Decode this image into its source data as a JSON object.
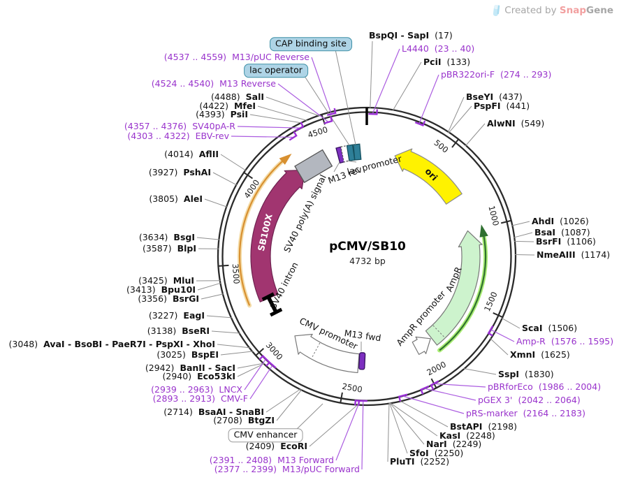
{
  "watermark": {
    "prefix": "Created by ",
    "brand_a": "Snap",
    "brand_b": "Gene"
  },
  "plasmid": {
    "name": "pCMV/SB10",
    "size": "4732 bp"
  },
  "tick_labels": [
    "500",
    "1000",
    "1500",
    "2000",
    "2500",
    "3000",
    "3500",
    "4000",
    "4500"
  ],
  "features": [
    {
      "id": "ori",
      "label": "ori"
    },
    {
      "id": "ampr",
      "label": "AmpR"
    },
    {
      "id": "ampr_promoter",
      "label": "AmpR promoter"
    },
    {
      "id": "cmv_promoter",
      "label": "CMV promoter"
    },
    {
      "id": "m13_fwd",
      "label": "M13 fwd"
    },
    {
      "id": "m13_rev",
      "label": "M13 rev"
    },
    {
      "id": "lac_promoter",
      "label": "lac promoter"
    },
    {
      "id": "sb100x",
      "label": "SB100X"
    },
    {
      "id": "sv40_polya",
      "label": "SV40 poly(A) signal"
    },
    {
      "id": "sv40_intron",
      "label": "SV40 intron"
    }
  ],
  "boxed_labels": [
    {
      "id": "cap",
      "text": "CAP binding site"
    },
    {
      "id": "lacop",
      "text": "lac operator"
    },
    {
      "id": "cmv_enh",
      "text": "CMV enhancer"
    }
  ],
  "enzymes": [
    {
      "id": "SalI",
      "name": "SalI",
      "pos": "(4488)"
    },
    {
      "id": "MfeI",
      "name": "MfeI",
      "pos": "(4422)"
    },
    {
      "id": "PsiI",
      "name": "PsiI",
      "pos": "(4393)"
    },
    {
      "id": "AflII",
      "name": "AflII",
      "pos": "(4014)"
    },
    {
      "id": "PshAI",
      "name": "PshAI",
      "pos": "(3927)"
    },
    {
      "id": "AleI",
      "name": "AleI",
      "pos": "(3805)"
    },
    {
      "id": "BsgI",
      "name": "BsgI",
      "pos": "(3634)"
    },
    {
      "id": "BlpI",
      "name": "BlpI",
      "pos": "(3587)"
    },
    {
      "id": "MluI",
      "name": "MluI",
      "pos": "(3425)"
    },
    {
      "id": "Bpu10I",
      "name": "Bpu10I",
      "pos": "(3413)"
    },
    {
      "id": "BsrGI",
      "name": "BsrGI",
      "pos": "(3356)"
    },
    {
      "id": "EagI",
      "name": "EagI",
      "pos": "(3227)"
    },
    {
      "id": "BseRI",
      "name": "BseRI",
      "pos": "(3138)"
    },
    {
      "id": "AvaGroup",
      "name": "AvaI - BsoBI - PaeR7I - PspXI - XhoI",
      "pos": "(3048)"
    },
    {
      "id": "BspEI",
      "name": "BspEI",
      "pos": "(3025)"
    },
    {
      "id": "BanII",
      "name": "BanII - SacI",
      "pos": "(2942)"
    },
    {
      "id": "Eco53kI",
      "name": "Eco53kI",
      "pos": "(2940)"
    },
    {
      "id": "BsaAI",
      "name": "BsaAI - SnaBI",
      "pos": "(2714)"
    },
    {
      "id": "BtgZI",
      "name": "BtgZI",
      "pos": "(2708)"
    },
    {
      "id": "EcoRI",
      "name": "EcoRI",
      "pos": "(2409)"
    },
    {
      "id": "BspQI",
      "name": "BspQI - SapI",
      "pos": "(17)"
    },
    {
      "id": "PciI",
      "name": "PciI",
      "pos": "(133)"
    },
    {
      "id": "BseYI",
      "name": "BseYI",
      "pos": "(437)"
    },
    {
      "id": "PspFI",
      "name": "PspFI",
      "pos": "(441)"
    },
    {
      "id": "AlwNI",
      "name": "AlwNI",
      "pos": "(549)"
    },
    {
      "id": "AhdI",
      "name": "AhdI",
      "pos": "(1026)"
    },
    {
      "id": "BsaI",
      "name": "BsaI",
      "pos": "(1087)"
    },
    {
      "id": "BsrFI",
      "name": "BsrFI",
      "pos": "(1106)"
    },
    {
      "id": "NmeAIII",
      "name": "NmeAIII",
      "pos": "(1174)"
    },
    {
      "id": "ScaI",
      "name": "ScaI",
      "pos": "(1506)"
    },
    {
      "id": "XmnI",
      "name": "XmnI",
      "pos": "(1625)"
    },
    {
      "id": "SspI",
      "name": "SspI",
      "pos": "(1830)"
    },
    {
      "id": "BstAPI",
      "name": "BstAPI",
      "pos": "(2198)"
    },
    {
      "id": "KasI",
      "name": "KasI",
      "pos": "(2248)"
    },
    {
      "id": "NarI",
      "name": "NarI",
      "pos": "(2249)"
    },
    {
      "id": "SfoI",
      "name": "SfoI",
      "pos": "(2250)"
    },
    {
      "id": "PluTI",
      "name": "PluTI",
      "pos": "(2252)"
    }
  ],
  "primers": [
    {
      "id": "M13pUCReverse",
      "name": "M13/pUC Reverse",
      "range": "(4537 .. 4559)"
    },
    {
      "id": "M13Reverse",
      "name": "M13 Reverse",
      "range": "(4524 .. 4540)"
    },
    {
      "id": "SV40pAR",
      "name": "SV40pA-R",
      "range": "(4357 .. 4376)"
    },
    {
      "id": "EBVrev",
      "name": "EBV-rev",
      "range": "(4303 .. 4322)"
    },
    {
      "id": "CMVF",
      "name": "CMV-F",
      "range": "(2893 .. 2913)"
    },
    {
      "id": "LNCX",
      "name": "LNCX",
      "range": "(2939 .. 2963)"
    },
    {
      "id": "M13Forward",
      "name": "M13 Forward",
      "range": "(2391 .. 2408)"
    },
    {
      "id": "M13pUCForward",
      "name": "M13/pUC Forward",
      "range": "(2377 .. 2399)"
    },
    {
      "id": "L4440",
      "name": "L4440",
      "range": "(23 .. 40)"
    },
    {
      "id": "pBR322oriF",
      "name": "pBR322ori-F",
      "range": "(274 .. 293)"
    },
    {
      "id": "AmpR",
      "name": "Amp-R",
      "range": "(1576 .. 1595)"
    },
    {
      "id": "pBRforEco",
      "name": "pBRforEco",
      "range": "(1986 .. 2004)"
    },
    {
      "id": "pGEX3",
      "name": "pGEX 3'",
      "range": "(2042 .. 2064)"
    },
    {
      "id": "pRSmarker",
      "name": "pRS-marker",
      "range": "(2164 .. 2183)"
    }
  ],
  "colors": {
    "circle": "#2B2B2B",
    "leader": "#8F8F8F",
    "primer_text": "#9933CC",
    "primer_line": "#AB5CE0",
    "primer_tick": "#9B30D6",
    "ori_fill": "#FFF200",
    "ampr_fill": "#CDF3CD",
    "ampr_line": "#2F7030",
    "ampr_glow": "#A8EC72",
    "sb_fill": "#A13570",
    "sb_stroke": "#6E2250",
    "sb_line": "#D89030",
    "sb_glow": "#F4DCA8",
    "gray_box": "#B3B7BF",
    "purple_box": "#7D2FC0",
    "purple_box_stroke": "#34105E",
    "teal_box": "#2E7F98",
    "teal_box_stroke": "#14505F",
    "white_arrow_stroke": "#777777",
    "intron": "#000000"
  }
}
